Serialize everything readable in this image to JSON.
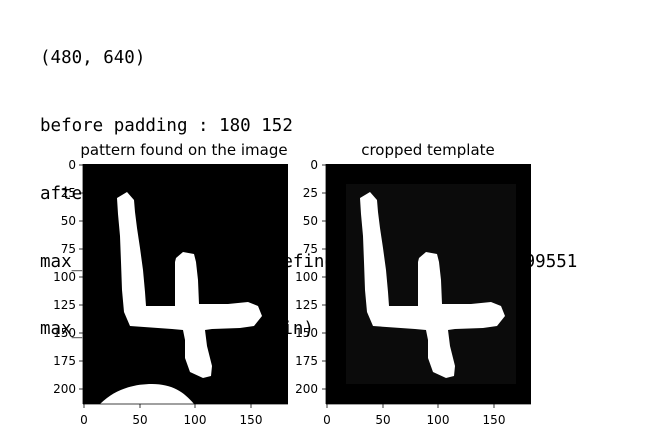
{
  "output_lines": [
    "(480, 640)",
    "before padding : 180 152",
    "after padding : 216 182",
    "max_correlation (user-defined) :  4898.296900399551",
    "max_correlation (built-in) :  [[4898.2969004]]"
  ],
  "plots": [
    {
      "title": "pattern found on the image",
      "xticks": [
        "0",
        "50",
        "100",
        "150"
      ],
      "yticks": [
        "0",
        "25",
        "50",
        "75",
        "100",
        "125",
        "150",
        "175",
        "200"
      ]
    },
    {
      "title": "cropped template",
      "xticks": [
        "0",
        "50",
        "100",
        "150"
      ],
      "yticks": [
        "0",
        "25",
        "50",
        "75",
        "100",
        "125",
        "150",
        "175",
        "200"
      ]
    }
  ],
  "colors": {
    "background": "#000000",
    "template_inner": "#0a0a0a",
    "digit": "#ffffff"
  }
}
